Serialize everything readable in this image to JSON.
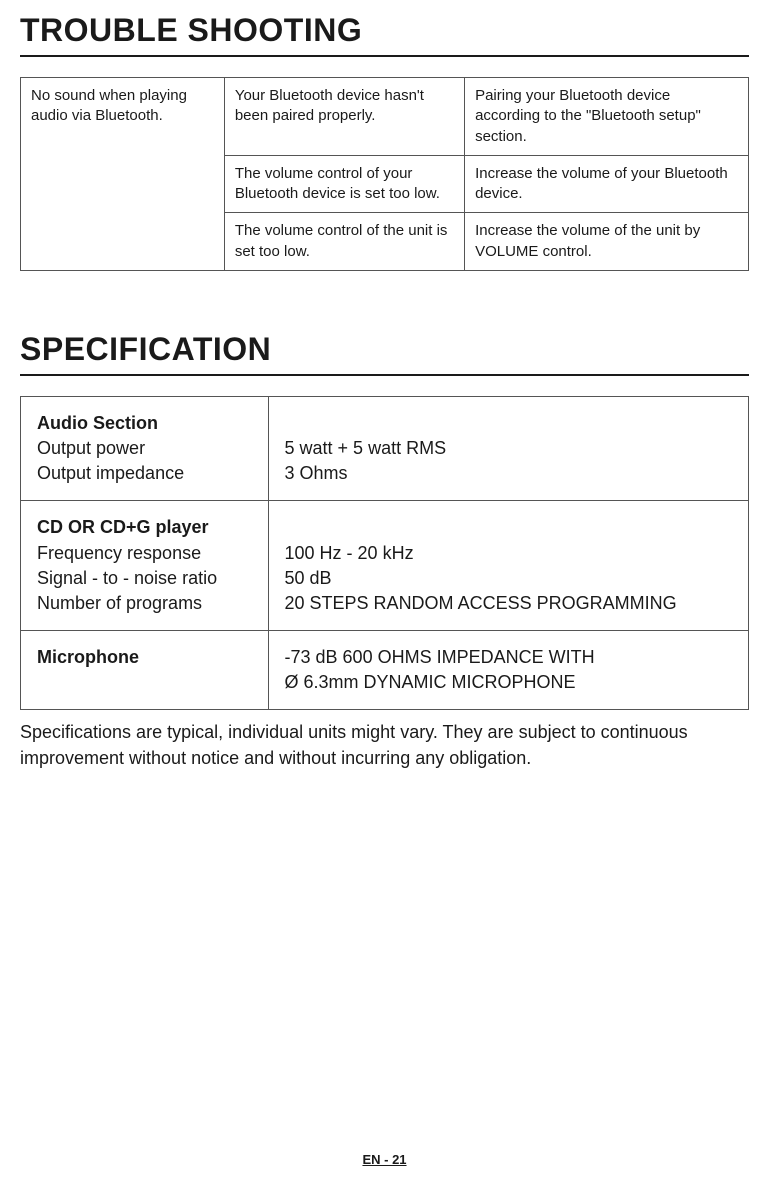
{
  "headings": {
    "troubleshooting": "TROUBLE SHOOTING",
    "specification": "SPECIFICATION"
  },
  "troubleshooting": {
    "problem": "No sound when playing audio via Bluetooth.",
    "rows": [
      {
        "cause": "Your Bluetooth device hasn't been paired properly.",
        "fix": "Pairing your Bluetooth device according to the \"Bluetooth setup\" section."
      },
      {
        "cause": "The volume control of your Bluetooth device is set too low.",
        "fix": "Increase the volume of your Bluetooth device."
      },
      {
        "cause": "The volume control of the unit is set too low.",
        "fix": "Increase the volume of the unit by VOLUME control."
      }
    ]
  },
  "specification": {
    "audio": {
      "title": "Audio Section",
      "label1": "Output power",
      "label2": "Output impedance",
      "val1": "5 watt + 5 watt RMS",
      "val2": "3 Ohms"
    },
    "cd": {
      "title": "CD OR CD+G player",
      "label1": "Frequency response",
      "label2": "Signal - to - noise ratio",
      "label3": "Number of programs",
      "val1": "100 Hz - 20 kHz",
      "val2": "50 dB",
      "val3": "20 STEPS RANDOM ACCESS PROGRAMMING"
    },
    "mic": {
      "title": "Microphone",
      "val1": "-73 dB 600 OHMS IMPEDANCE WITH",
      "val2": "Ø 6.3mm DYNAMIC MICROPHONE"
    }
  },
  "note": "Specifications are typical, individual units might vary. They are subject to continuous improvement without notice and without incurring any obligation.",
  "footer": "EN - 21"
}
